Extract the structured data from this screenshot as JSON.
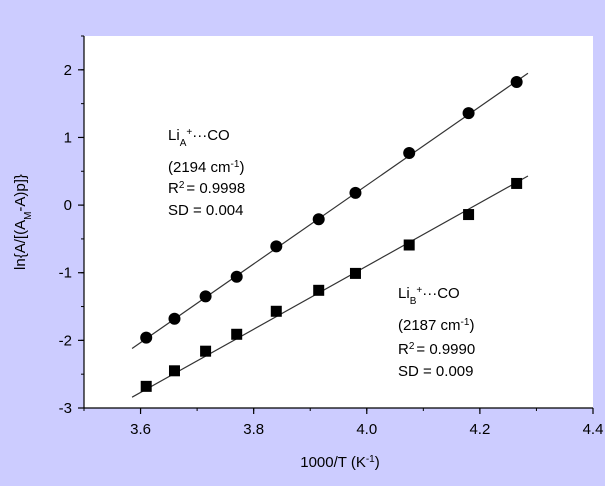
{
  "chart_data": {
    "type": "scatter",
    "xlabel": "1000/T (K⁻¹)",
    "ylabel": "ln{A/[(A_M-A)p]}",
    "xlim": [
      3.5,
      4.4
    ],
    "ylim": [
      -3,
      2.5
    ],
    "x_ticks": [
      3.6,
      3.8,
      4.0,
      4.2,
      4.4
    ],
    "x_tick_labels": [
      "3.6",
      "3.8",
      "4.0",
      "4.2",
      "4.4"
    ],
    "y_ticks": [
      -3,
      -2,
      -1,
      0,
      1,
      2
    ],
    "y_tick_labels": [
      "-3",
      "-2",
      "-1",
      "0",
      "1",
      "2"
    ],
    "grid": false,
    "series": [
      {
        "name": "LiA+···CO",
        "marker": "circle",
        "x": [
          3.61,
          3.66,
          3.715,
          3.77,
          3.84,
          3.915,
          3.98,
          4.075,
          4.18,
          4.265
        ],
        "y": [
          -1.96,
          -1.68,
          -1.35,
          -1.06,
          -0.61,
          -0.21,
          0.18,
          0.77,
          1.36,
          1.82
        ],
        "fit_line": [
          [
            3.585,
            -2.12
          ],
          [
            4.285,
            1.95
          ]
        ],
        "annotation": {
          "species_main": "Li",
          "species_sub": "A",
          "species_sup": "+",
          "species_tail": "···CO",
          "wavenumber": "(2194 cm",
          "wavenumber_sup": "-1",
          "wavenumber_close": ")",
          "r2_label": "R",
          "r2_sup": "2",
          "r2_value": "= 0.9998",
          "sd": "SD = 0.004"
        }
      },
      {
        "name": "LiB+···CO",
        "marker": "square",
        "x": [
          3.61,
          3.66,
          3.715,
          3.77,
          3.84,
          3.915,
          3.98,
          4.075,
          4.18,
          4.265
        ],
        "y": [
          -2.68,
          -2.45,
          -2.16,
          -1.91,
          -1.57,
          -1.26,
          -1.01,
          -0.59,
          -0.14,
          0.32
        ],
        "fit_line": [
          [
            3.585,
            -2.84
          ],
          [
            4.285,
            0.43
          ]
        ],
        "annotation": {
          "species_main": "Li",
          "species_sub": "B",
          "species_sup": "+",
          "species_tail": "···CO",
          "wavenumber": "(2187 cm",
          "wavenumber_sup": "-1",
          "wavenumber_close": ")",
          "r2_label": "R",
          "r2_sup": "2",
          "r2_value": "= 0.9990",
          "sd": "SD = 0.009"
        }
      }
    ]
  },
  "ylabel_parts": {
    "a": "ln{A/[(A",
    "sub": "M",
    "b": "-A)p]}"
  },
  "xlabel_parts": {
    "a": "1000/T (K",
    "sup": "-1",
    "b": ")"
  },
  "colors": {
    "background": "#ccccff",
    "plot_background": "#ffffff",
    "axis": "#000000",
    "marker": "#000000",
    "fit_line": "#333333"
  }
}
